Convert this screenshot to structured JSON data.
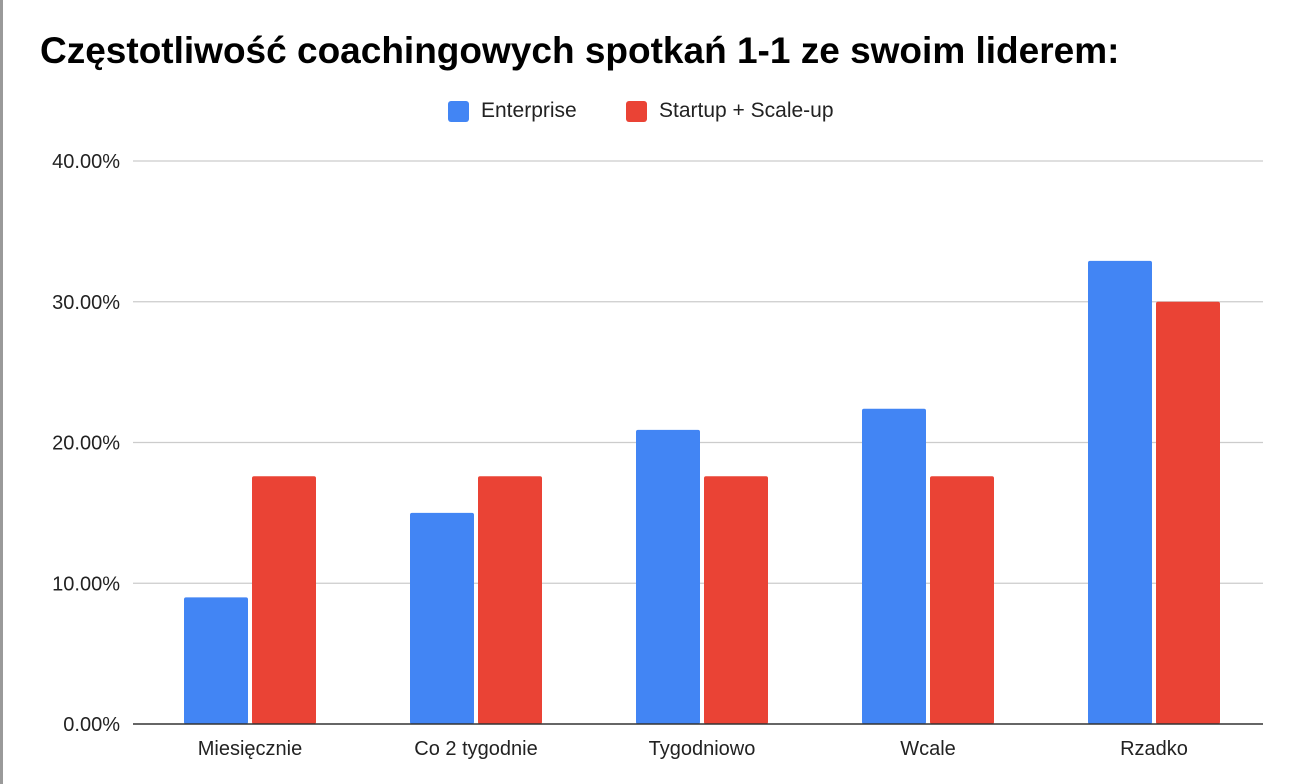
{
  "chart_data": {
    "type": "bar",
    "title": "Częstotliwość coachingowych spotkań 1-1 ze swoim liderem:",
    "categories": [
      "Miesięcznie",
      "Co 2 tygodnie",
      "Tygodniowo",
      "Wcale",
      "Rzadko"
    ],
    "series": [
      {
        "name": "Enterprise",
        "color": "#4285F4",
        "values": [
          9.0,
          15.0,
          20.9,
          22.4,
          32.9
        ]
      },
      {
        "name": "Startup + Scale-up",
        "color": "#EA4335",
        "values": [
          17.6,
          17.6,
          17.6,
          17.6,
          30.0
        ]
      }
    ],
    "ylim": [
      0,
      40
    ],
    "yticks": [
      0,
      10,
      20,
      30,
      40
    ],
    "ytick_labels": [
      "0.00%",
      "10.00%",
      "20.00%",
      "30.00%",
      "40.00%"
    ],
    "xlabel": "",
    "ylabel": "",
    "grid": true,
    "legend_position": "top"
  }
}
